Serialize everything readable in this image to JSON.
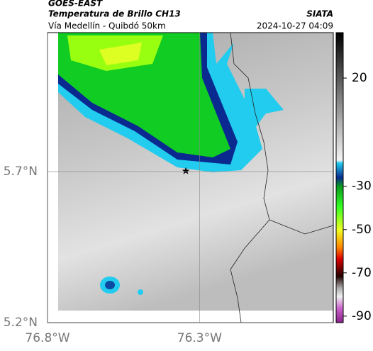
{
  "header": {
    "product": "GOES-EAST",
    "title": "Temperatura de Brillo CH13",
    "subtitle": "Vía Medellín - Quibdó 50km",
    "source": "SIATA",
    "datetime": "2024-10-27 04:09"
  },
  "map": {
    "xlim": [
      -76.8,
      -75.86
    ],
    "ylim": [
      5.2,
      6.16
    ],
    "xticks": [
      {
        "value": -76.8,
        "label": "76.8°W"
      },
      {
        "value": -76.3,
        "label": "76.3°W"
      }
    ],
    "yticks": [
      {
        "value": 5.7,
        "label": "5.7°N"
      },
      {
        "value": 5.2,
        "label": "5.2°N"
      }
    ]
  },
  "colorbar": {
    "clim": [
      -93,
      41
    ],
    "ticks": [
      20,
      -30,
      -50,
      -70,
      -90
    ]
  }
}
